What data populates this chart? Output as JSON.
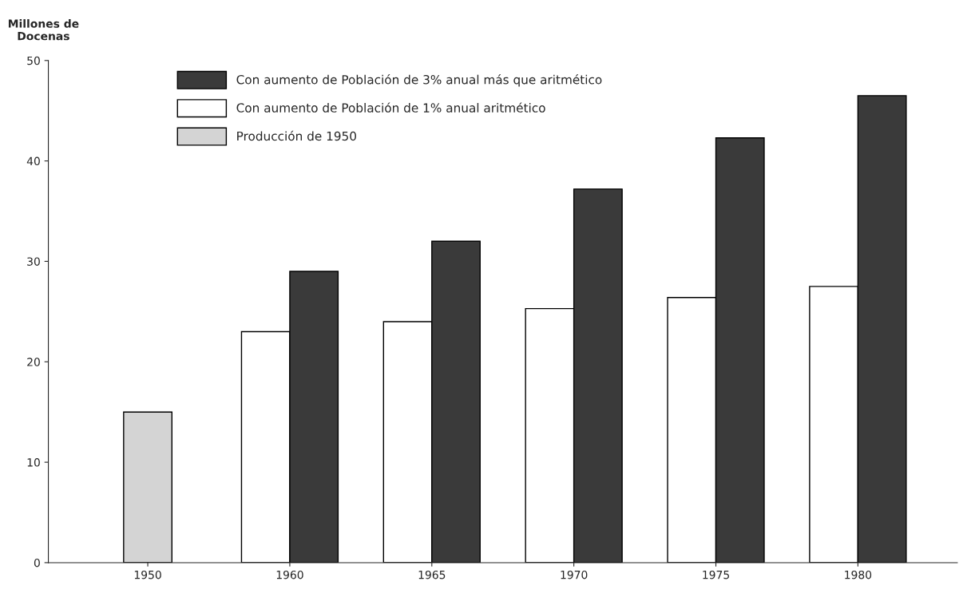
{
  "chart_data": {
    "type": "bar",
    "ylabel": "Millones de\nDocenas",
    "categories": [
      "1950",
      "1960",
      "1965",
      "1970",
      "1975",
      "1980"
    ],
    "series": [
      {
        "name": "Con aumento de Población de 3% anual más que aritmético",
        "color": "#3a3a3a",
        "values": [
          null,
          29,
          32,
          37.2,
          42.3,
          46.5
        ]
      },
      {
        "name": "Con aumento de Población de 1% anual aritmético",
        "color": "#ffffff",
        "values": [
          null,
          23,
          24,
          25.3,
          26.4,
          27.5
        ]
      },
      {
        "name": "Producción de 1950",
        "color": "#d4d4d4",
        "values": [
          15,
          null,
          null,
          null,
          null,
          null
        ]
      }
    ],
    "ylim": [
      0,
      50
    ],
    "yticks": [
      0,
      10,
      20,
      30,
      40,
      50
    ],
    "grid": false,
    "legend": "top left"
  }
}
